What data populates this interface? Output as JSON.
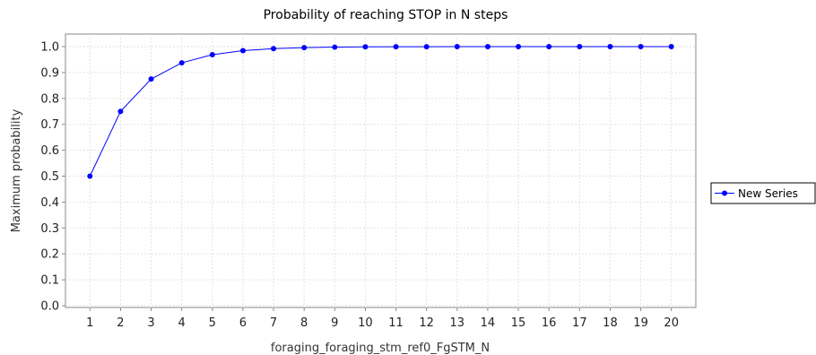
{
  "chart_data": {
    "type": "line",
    "title": "Probability of reaching STOP in N steps",
    "xlabel": "foraging_foraging_stm_ref0_FgSTM_N",
    "ylabel": "Maximum probability",
    "x": [
      1,
      2,
      3,
      4,
      5,
      6,
      7,
      8,
      9,
      10,
      11,
      12,
      13,
      14,
      15,
      16,
      17,
      18,
      19,
      20
    ],
    "x_tick_labels": [
      "1",
      "2",
      "3",
      "4",
      "5",
      "6",
      "7",
      "8",
      "9",
      "10",
      "11",
      "12",
      "13",
      "14",
      "15",
      "16",
      "17",
      "18",
      "19",
      "20"
    ],
    "y_tick_labels": [
      "0.0",
      "0.1",
      "0.2",
      "0.3",
      "0.4",
      "0.5",
      "0.6",
      "0.7",
      "0.8",
      "0.9",
      "1.0"
    ],
    "ylim": [
      0,
      1
    ],
    "xlim": [
      0.2,
      20.8
    ],
    "grid": true,
    "legend_position": "right",
    "series": [
      {
        "name": "New Series",
        "color": "#0000ff",
        "values": [
          0.5,
          0.75,
          0.875,
          0.9375,
          0.96875,
          0.984375,
          0.9921875,
          0.99609375,
          0.998046875,
          0.9990234375,
          0.99951171875,
          0.999755859375,
          0.9998779296875,
          0.99993896484375,
          0.999969482421875,
          0.9999847412109375,
          0.9999923706054688,
          0.9999961853027344,
          0.9999980926513672,
          0.9999990463256836
        ]
      }
    ]
  }
}
